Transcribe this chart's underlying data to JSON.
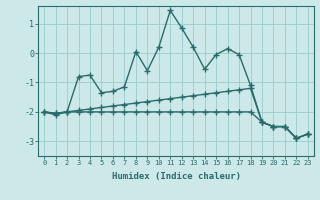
{
  "xlabel": "Humidex (Indice chaleur)",
  "background_color": "#cce8e8",
  "grid_color": "#99cccc",
  "line_color": "#2a6b6b",
  "xlim": [
    -0.5,
    23.5
  ],
  "ylim": [
    -3.5,
    1.6
  ],
  "yticks": [
    -3,
    -2,
    -1,
    0,
    1
  ],
  "xticks": [
    0,
    1,
    2,
    3,
    4,
    5,
    6,
    7,
    8,
    9,
    10,
    11,
    12,
    13,
    14,
    15,
    16,
    17,
    18,
    19,
    20,
    21,
    22,
    23
  ],
  "s1y": [
    -2.0,
    -2.1,
    -2.0,
    -0.8,
    -0.75,
    -1.35,
    -1.3,
    -1.15,
    0.05,
    -0.6,
    0.2,
    1.45,
    0.85,
    0.2,
    -0.55,
    -0.05,
    0.15,
    -0.05,
    -1.1,
    -2.35,
    -2.5,
    -2.5,
    -2.9,
    -2.75
  ],
  "s2y": [
    -2.0,
    -2.05,
    -2.0,
    -2.0,
    -2.0,
    -2.0,
    -2.0,
    -2.0,
    -2.0,
    -2.0,
    -2.0,
    -2.0,
    -2.0,
    -2.0,
    -2.0,
    -2.0,
    -2.0,
    -2.0,
    -2.0,
    -2.35,
    -2.5,
    -2.5,
    -2.9,
    -2.75
  ],
  "s3y": [
    -2.0,
    -2.05,
    -2.0,
    -1.95,
    -1.9,
    -1.85,
    -1.8,
    -1.75,
    -1.7,
    -1.65,
    -1.6,
    -1.55,
    -1.5,
    -1.45,
    -1.4,
    -1.35,
    -1.3,
    -1.25,
    -1.2,
    -2.35,
    -2.5,
    -2.5,
    -2.9,
    -2.75
  ],
  "marker_size": 2.5,
  "linewidth": 1.0
}
